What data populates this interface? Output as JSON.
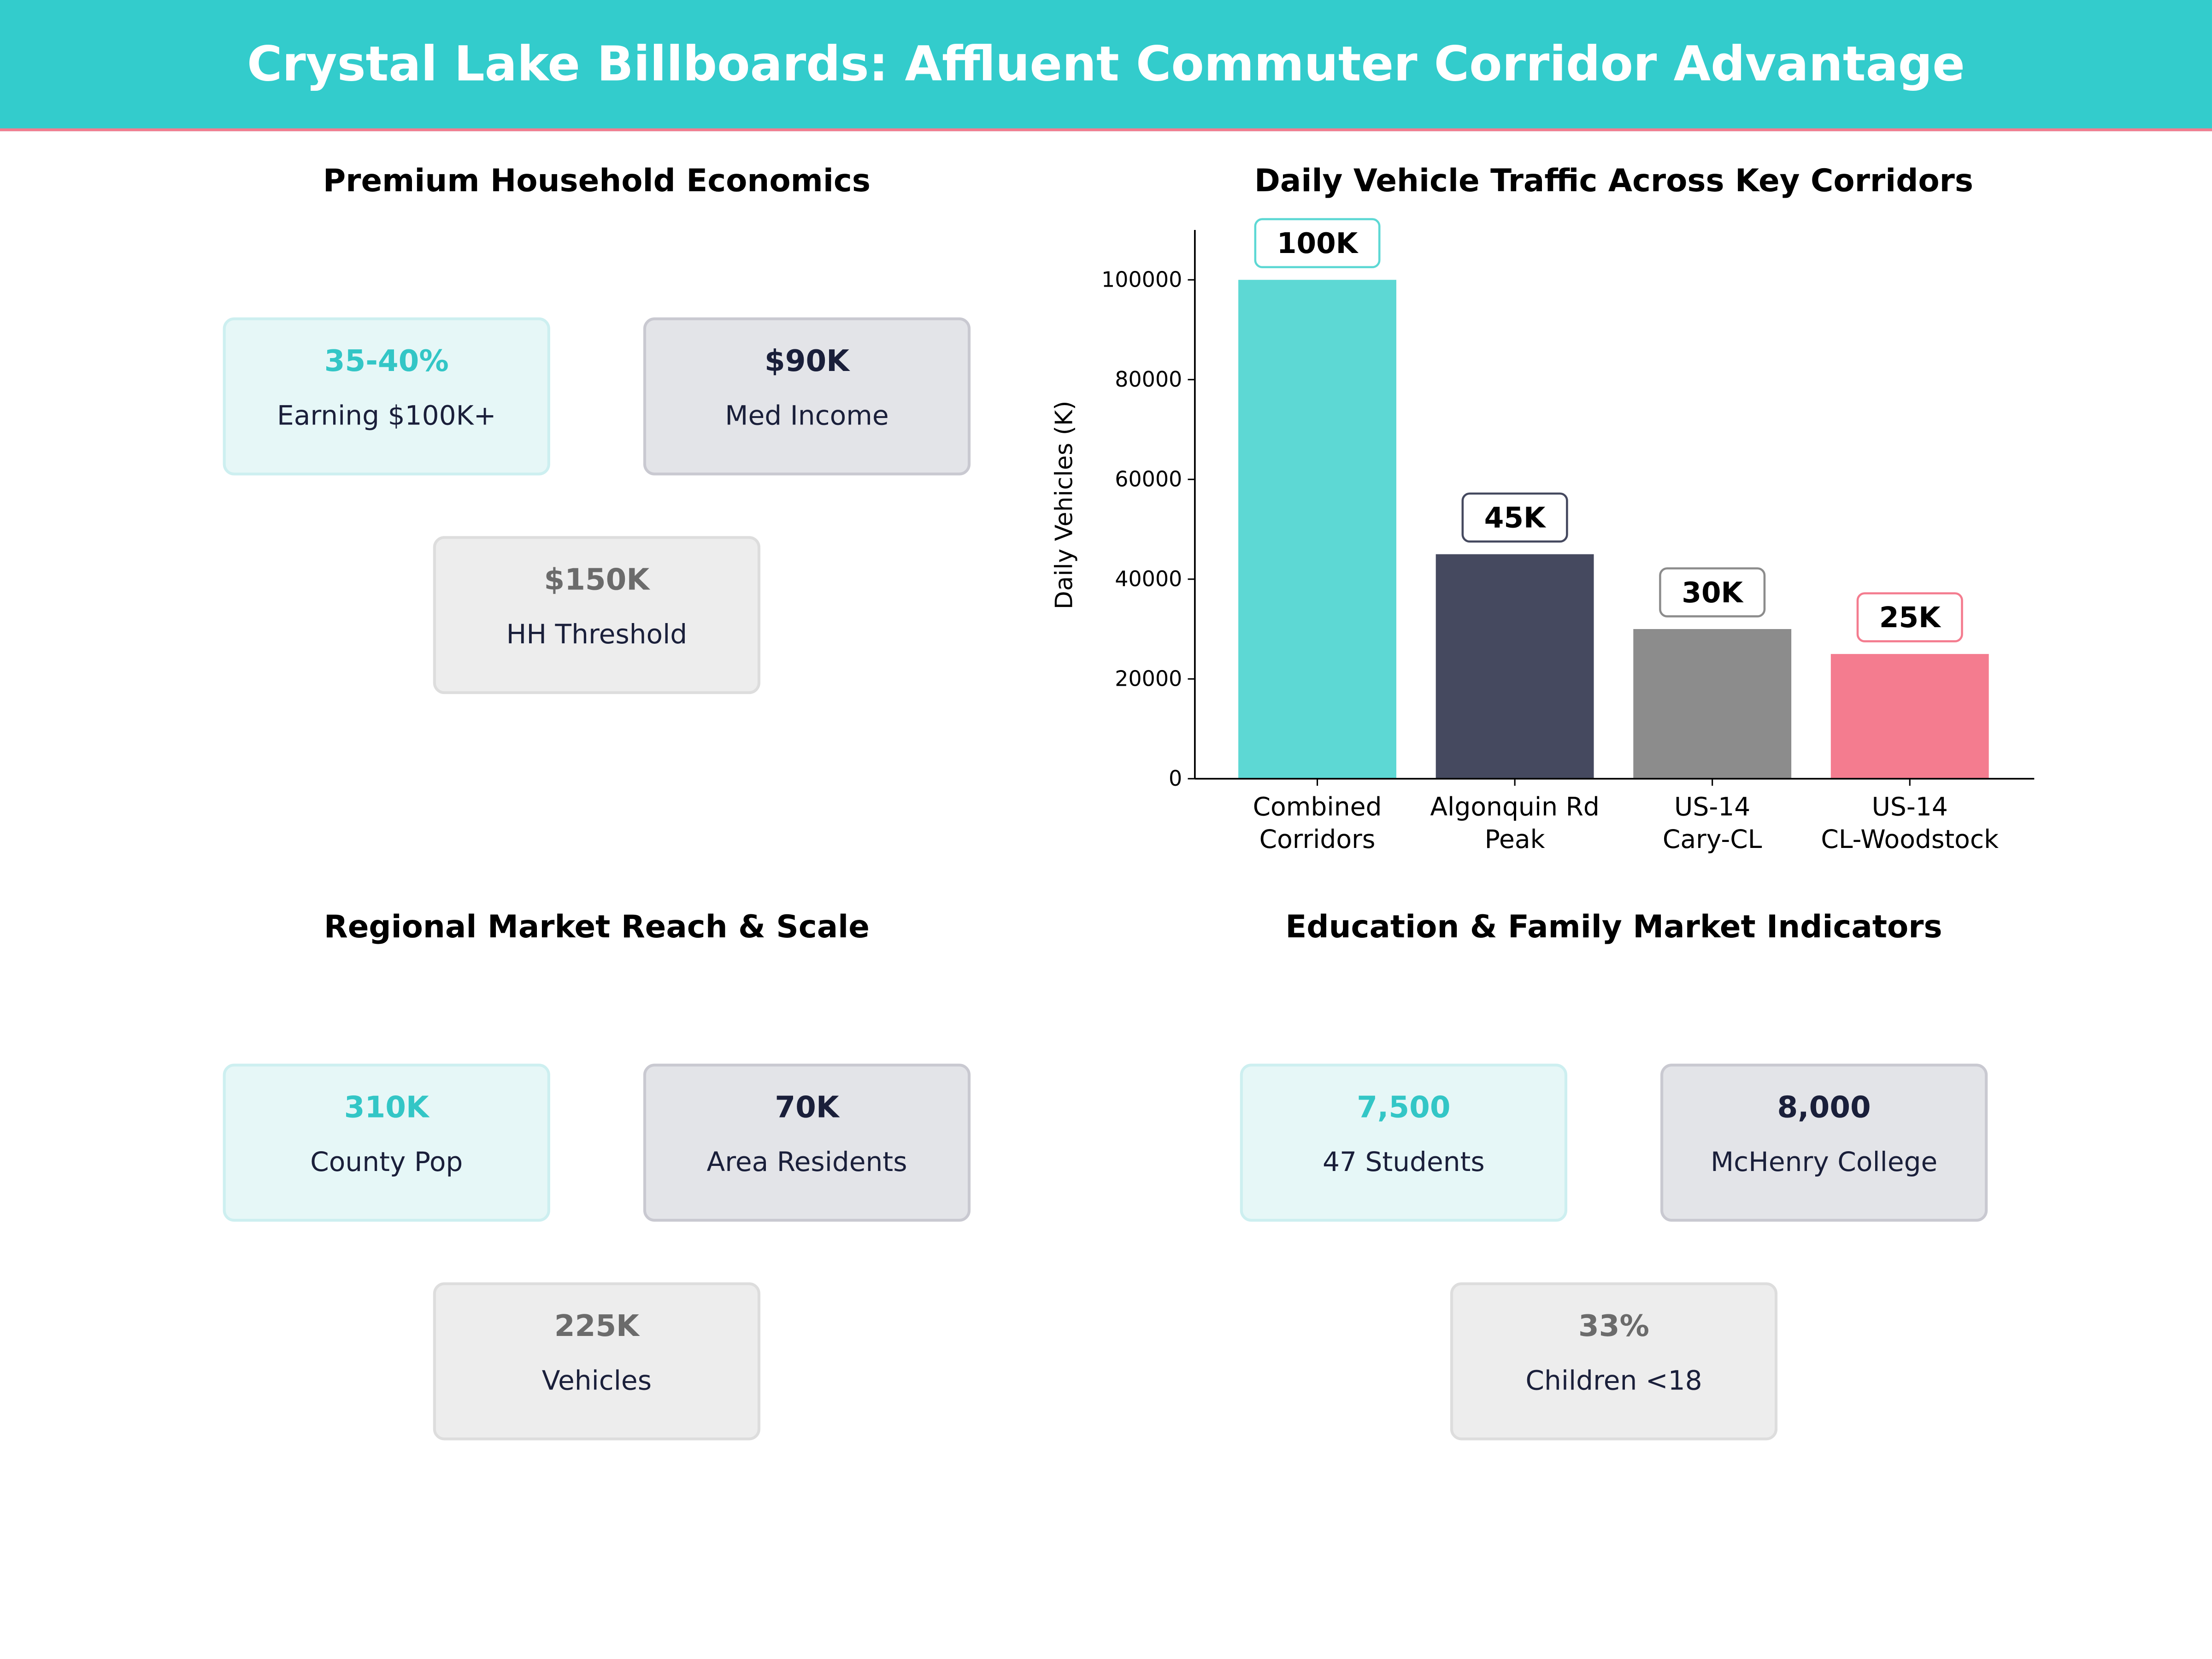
{
  "title": "Crystal Lake Billboards: Affluent Commuter Corridor Advantage",
  "panels": {
    "household": {
      "title": "Premium Household Economics",
      "cards": [
        {
          "value": "35-40%",
          "label": "Earning $100K+",
          "style": "teal"
        },
        {
          "value": "$90K",
          "label": "Med Income",
          "style": "dark"
        },
        {
          "value": "$150K",
          "label": "HH Threshold",
          "style": "gray"
        }
      ]
    },
    "reach": {
      "title": "Regional Market Reach & Scale",
      "cards": [
        {
          "value": "310K",
          "label": "County Pop",
          "style": "teal"
        },
        {
          "value": "70K",
          "label": "Area Residents",
          "style": "dark"
        },
        {
          "value": "225K",
          "label": "Vehicles",
          "style": "gray"
        }
      ]
    },
    "education": {
      "title": "Education & Family Market Indicators",
      "cards": [
        {
          "value": "7,500",
          "label": "47 Students",
          "style": "teal"
        },
        {
          "value": "8,000",
          "label": "McHenry College",
          "style": "dark"
        },
        {
          "value": "33%",
          "label": "Children <18",
          "style": "gray"
        }
      ]
    }
  },
  "chart_data": {
    "type": "bar",
    "title": "Daily Vehicle Traffic Across Key Corridors",
    "ylabel": "Daily Vehicles (K)",
    "xlabel": "",
    "categories": [
      [
        "Combined",
        "Corridors"
      ],
      [
        "Algonquin Rd",
        "Peak"
      ],
      [
        "US-14",
        "Cary-CL"
      ],
      [
        "US-14",
        "CL-Woodstock"
      ]
    ],
    "values": [
      100000,
      45000,
      30000,
      25000
    ],
    "data_labels": [
      "100K",
      "45K",
      "30K",
      "25K"
    ],
    "colors": [
      "#5DD8D4",
      "#45495F",
      "#8C8C8C",
      "#F47C8F"
    ],
    "label_border_colors": [
      "#5DD8D4",
      "#45495F",
      "#8C8C8C",
      "#F47C8F"
    ],
    "ylim": [
      0,
      110000
    ],
    "yticks": [
      0,
      20000,
      40000,
      60000,
      80000,
      100000
    ],
    "grid": false
  }
}
